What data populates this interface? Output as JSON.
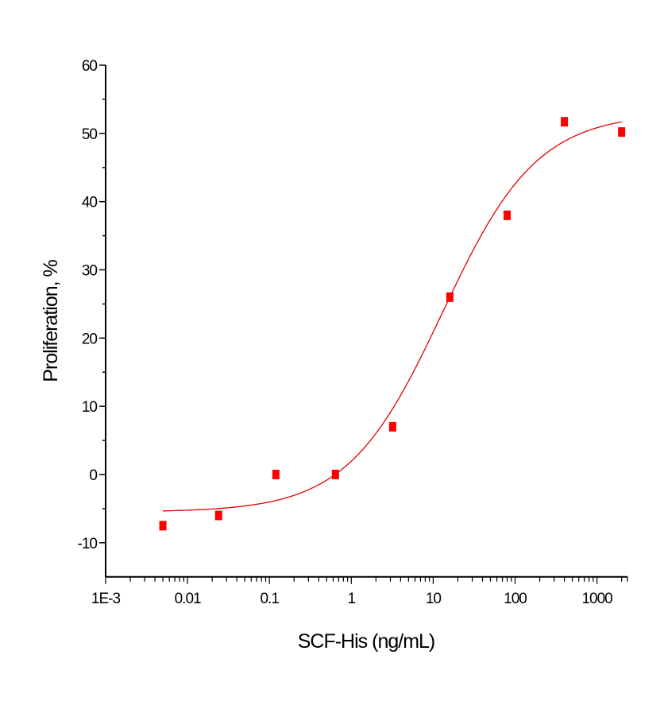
{
  "chart_data": {
    "type": "scatter",
    "title": "",
    "xlabel": "SCF-His (ng/mL)",
    "ylabel": "Proliferation, %",
    "xscale": "log",
    "xlim": [
      0.001,
      2400
    ],
    "ylim": [
      -15,
      60
    ],
    "x_ticks": [
      "1E-3",
      "0.01",
      "0.1",
      "1",
      "10",
      "100",
      "1000"
    ],
    "y_ticks": [
      "-10",
      "0",
      "10",
      "20",
      "30",
      "40",
      "50",
      "60"
    ],
    "grid": false,
    "legend": null,
    "series": [
      {
        "name": "data",
        "marker": "square",
        "color": "#ff0000",
        "x": [
          0.005,
          0.024,
          0.12,
          0.64,
          3.2,
          16,
          80,
          400,
          2000
        ],
        "y": [
          -7.5,
          -6,
          0,
          0,
          7,
          26,
          38,
          51.7,
          50.2
        ]
      },
      {
        "name": "fit",
        "type": "line",
        "color": "#e00000",
        "model": "4PL",
        "bottom": -5.5,
        "top": 53,
        "ec50": 13,
        "hill": 0.75
      }
    ]
  }
}
